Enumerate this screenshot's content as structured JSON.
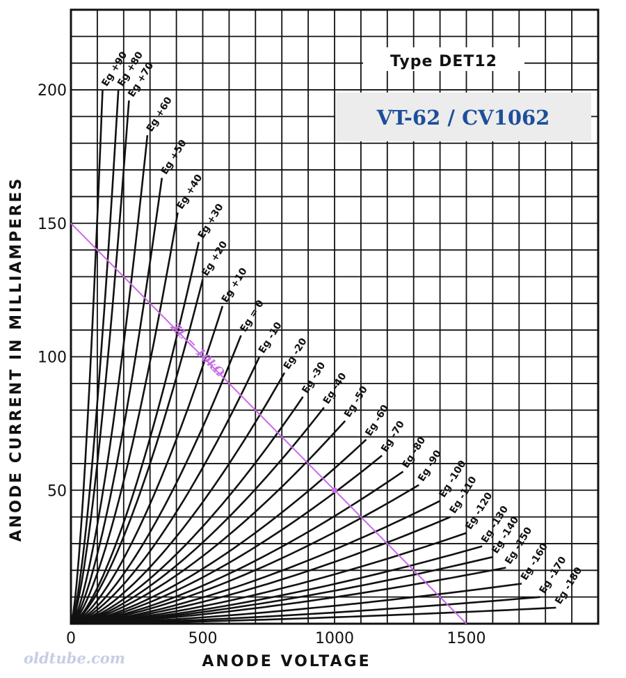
{
  "chart_data": {
    "type": "line",
    "type_label": "Type DET12",
    "tube_label": "VT-62 / CV1062",
    "xlabel": "ANODE VOLTAGE",
    "ylabel": "ANODE CURRENT IN MILLIAMPERES",
    "xlim": [
      0,
      2000
    ],
    "ylim": [
      0,
      230
    ],
    "x_ticks": [
      "0",
      "500",
      "1000",
      "1500"
    ],
    "y_ticks": [
      "50",
      "100",
      "150",
      "200"
    ],
    "grid": true,
    "series": [
      {
        "name": "Eg +90",
        "end": [
          120,
          200
        ]
      },
      {
        "name": "Eg +80",
        "end": [
          180,
          200
        ]
      },
      {
        "name": "Eg +70",
        "end": [
          220,
          196
        ]
      },
      {
        "name": "Eg +60",
        "end": [
          290,
          183
        ]
      },
      {
        "name": "Eg +50",
        "end": [
          345,
          167
        ]
      },
      {
        "name": "Eg +40",
        "end": [
          405,
          154
        ]
      },
      {
        "name": "Eg +30",
        "end": [
          485,
          143
        ]
      },
      {
        "name": "Eg +20",
        "end": [
          500,
          129
        ]
      },
      {
        "name": "Eg +10",
        "end": [
          575,
          119
        ]
      },
      {
        "name": "Eg = 0",
        "end": [
          645,
          108
        ]
      },
      {
        "name": "Eg -10",
        "end": [
          715,
          100
        ]
      },
      {
        "name": "Eg -20",
        "end": [
          810,
          94
        ]
      },
      {
        "name": "Eg -30",
        "end": [
          880,
          85
        ]
      },
      {
        "name": "Eg -40",
        "end": [
          960,
          81
        ]
      },
      {
        "name": "Eg -50",
        "end": [
          1040,
          76
        ]
      },
      {
        "name": "Eg -60",
        "end": [
          1120,
          69
        ]
      },
      {
        "name": "Eg -70",
        "end": [
          1180,
          63
        ]
      },
      {
        "name": "Eg -80",
        "end": [
          1260,
          57
        ]
      },
      {
        "name": "Eg -90",
        "end": [
          1320,
          52
        ]
      },
      {
        "name": "Eg -100",
        "end": [
          1400,
          46
        ]
      },
      {
        "name": "Eg -110",
        "end": [
          1440,
          40
        ]
      },
      {
        "name": "Eg -120",
        "end": [
          1500,
          34
        ]
      },
      {
        "name": "Eg -130",
        "end": [
          1560,
          29
        ]
      },
      {
        "name": "Eg -140",
        "end": [
          1600,
          25
        ]
      },
      {
        "name": "Eg -150",
        "end": [
          1650,
          21
        ]
      },
      {
        "name": "Eg -160",
        "end": [
          1710,
          15
        ]
      },
      {
        "name": "Eg -170",
        "end": [
          1780,
          10
        ]
      },
      {
        "name": "Eg -180",
        "end": [
          1840,
          6
        ]
      }
    ],
    "annotations": [
      {
        "text": "ZL = 10kΩ",
        "line_from": [
          0,
          150
        ],
        "line_to": [
          1500,
          0
        ],
        "marker": [
          1000,
          50
        ]
      }
    ],
    "watermark": "oldtube.com",
    "colors": {
      "curve": "#111111",
      "grid": "#111111",
      "load_line": "#c86be8",
      "tube_label": "#1d4e9a",
      "label_box": "#ececec",
      "watermark": "#c7cde4"
    }
  }
}
